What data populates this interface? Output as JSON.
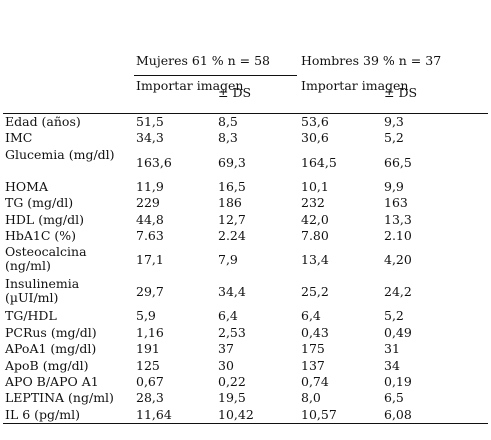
{
  "groups": {
    "women": "Mujeres 61 % n = 58",
    "men": "Hombres 39 % n = 37"
  },
  "subheaders": {
    "women_mean": "Importar imagen",
    "women_sd": "± DS",
    "men_mean": "Importar imagen",
    "men_sd": "± DS"
  },
  "rows": [
    {
      "label": "Edad (años)",
      "m_mean": "51,5",
      "m_sd": "8,5",
      "h_mean": "53,6",
      "h_sd": "9,3"
    },
    {
      "label": "IMC",
      "m_mean": "34,3",
      "m_sd": "8,3",
      "h_mean": "30,6",
      "h_sd": "5,2"
    },
    {
      "label": "Glucemia (mg/dl)",
      "m_mean": "163,6",
      "m_sd": "69,3",
      "h_mean": "164,5",
      "h_sd": "66,5"
    },
    {
      "label": "HOMA",
      "m_mean": "11,9",
      "m_sd": "16,5",
      "h_mean": "10,1",
      "h_sd": "9,9"
    },
    {
      "label": "TG (mg/dl)",
      "m_mean": "229",
      "m_sd": "186",
      "h_mean": "232",
      "h_sd": "163"
    },
    {
      "label": "HDL (mg/dl)",
      "m_mean": "44,8",
      "m_sd": "12,7",
      "h_mean": "42,0",
      "h_sd": "13,3"
    },
    {
      "label": "HbA1C (%)",
      "m_mean": "7.63",
      "m_sd": "2.24",
      "h_mean": "7.80",
      "h_sd": "2.10"
    },
    {
      "label": "Osteocalcina (ng/ml)",
      "m_mean": "17,1",
      "m_sd": "7,9",
      "h_mean": "13,4",
      "h_sd": "4,20"
    },
    {
      "label": "Insulinemia (µUI/ml)",
      "m_mean": "29,7",
      "m_sd": "34,4",
      "h_mean": "25,2",
      "h_sd": "24,2"
    },
    {
      "label": "TG/HDL",
      "m_mean": "5,9",
      "m_sd": "6,4",
      "h_mean": "6,4",
      "h_sd": "5,2"
    },
    {
      "label": "PCRus (mg/dl)",
      "m_mean": "1,16",
      "m_sd": "2,53",
      "h_mean": "0,43",
      "h_sd": "0,49"
    },
    {
      "label": "APoA1 (mg/dl)",
      "m_mean": "191",
      "m_sd": "37",
      "h_mean": "175",
      "h_sd": "31"
    },
    {
      "label": "ApoB (mg/dl)",
      "m_mean": "125",
      "m_sd": "30",
      "h_mean": "137",
      "h_sd": "34"
    },
    {
      "label": "APO B/APO A1",
      "m_mean": "0,67",
      "m_sd": "0,22",
      "h_mean": "0,74",
      "h_sd": "0,19"
    },
    {
      "label": "LEPTINA (ng/ml)",
      "m_mean": "28,3",
      "m_sd": "19,5",
      "h_mean": "8,0",
      "h_sd": "6,5"
    },
    {
      "label": "IL 6 (pg/ml)",
      "m_mean": "11,64",
      "m_sd": "10,42",
      "h_mean": "10,57",
      "h_sd": "6,08"
    }
  ]
}
